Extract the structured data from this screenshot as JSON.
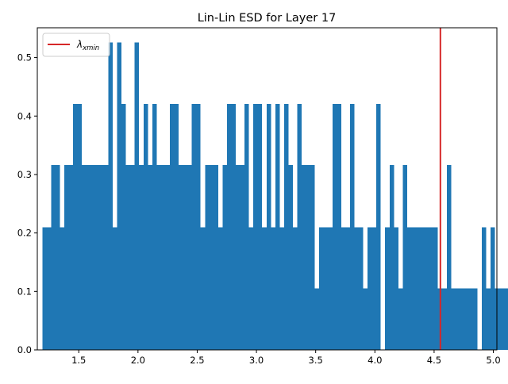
{
  "chart_data": {
    "type": "bar",
    "title": "Lin-Lin ESD for Layer 17",
    "xlabel": "",
    "ylabel": "",
    "xlim": [
      1.15,
      5.03
    ],
    "ylim": [
      0.0,
      0.551
    ],
    "x_ticks": [
      1.5,
      2.0,
      2.5,
      3.0,
      3.5,
      4.0,
      4.5,
      5.0
    ],
    "x_tick_labels": [
      "1.5",
      "2.0",
      "2.5",
      "3.0",
      "3.5",
      "4.0",
      "4.5",
      "5.0"
    ],
    "y_ticks": [
      0.0,
      0.1,
      0.2,
      0.3,
      0.4,
      0.5
    ],
    "y_tick_labels": [
      "0.0",
      "0.1",
      "0.2",
      "0.3",
      "0.4",
      "0.5"
    ],
    "bin_start": 1.193,
    "bin_width": 0.0371,
    "bar_color": "#1f77b4",
    "values": [
      0.21,
      0.21,
      0.316,
      0.316,
      0.21,
      0.316,
      0.316,
      0.421,
      0.421,
      0.316,
      0.316,
      0.316,
      0.316,
      0.316,
      0.316,
      0.526,
      0.21,
      0.526,
      0.421,
      0.316,
      0.316,
      0.526,
      0.316,
      0.421,
      0.316,
      0.421,
      0.316,
      0.316,
      0.316,
      0.421,
      0.421,
      0.316,
      0.316,
      0.316,
      0.421,
      0.421,
      0.21,
      0.316,
      0.316,
      0.316,
      0.21,
      0.316,
      0.421,
      0.421,
      0.316,
      0.316,
      0.421,
      0.21,
      0.421,
      0.421,
      0.21,
      0.421,
      0.21,
      0.421,
      0.21,
      0.421,
      0.316,
      0.21,
      0.421,
      0.316,
      0.316,
      0.316,
      0.105,
      0.21,
      0.21,
      0.21,
      0.421,
      0.421,
      0.21,
      0.21,
      0.421,
      0.21,
      0.21,
      0.105,
      0.21,
      0.21,
      0.421,
      0.0,
      0.21,
      0.316,
      0.21,
      0.105,
      0.316,
      0.21,
      0.21,
      0.21,
      0.21,
      0.21,
      0.21,
      0.21,
      0.105,
      0.105,
      0.316,
      0.105,
      0.105,
      0.105,
      0.105,
      0.105,
      0.105,
      0.0,
      0.21,
      0.105,
      0.21,
      0.105,
      0.105,
      0.105,
      0.0,
      0.105,
      0.0,
      0.105,
      0.105
    ],
    "reference_line": {
      "label_base": "λ",
      "label_sub": "xmin",
      "x": 4.553,
      "color": "#d62728"
    },
    "legend_position": "upper-left",
    "grid": false
  }
}
